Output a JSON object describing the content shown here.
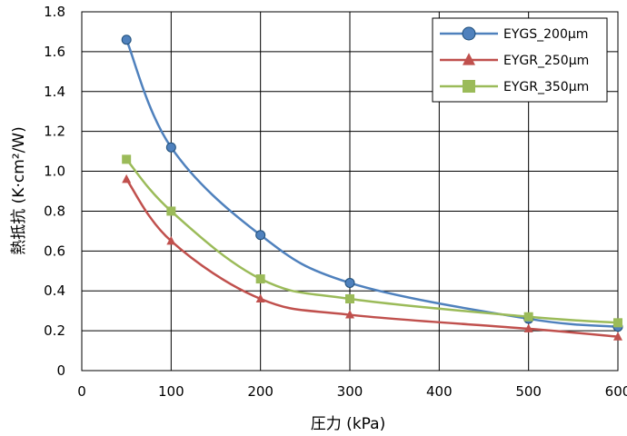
{
  "chart_data": {
    "type": "line",
    "title": "",
    "xlabel": "圧力 (kPa)",
    "ylabel": "熱抵抗 (K·cm²/W)",
    "xlim": [
      0,
      600
    ],
    "ylim": [
      0,
      1.8
    ],
    "x_ticks": [
      0,
      100,
      200,
      300,
      400,
      500,
      600
    ],
    "y_ticks": [
      0,
      0.2,
      0.4,
      0.6,
      0.8,
      1.0,
      1.2,
      1.4,
      1.6,
      1.8
    ],
    "x_tick_labels": [
      "0",
      "100",
      "200",
      "300",
      "400",
      "500",
      "600"
    ],
    "y_tick_labels": [
      "0",
      "0.2",
      "0.4",
      "0.6",
      "0.8",
      "1.0",
      "1.2",
      "1.4",
      "1.6",
      "1.8"
    ],
    "grid": true,
    "legend_position": "top-right",
    "series": [
      {
        "name": "EYGS_200μm",
        "color": "#4F81BD",
        "marker": "circle",
        "x": [
          50,
          100,
          200,
          300,
          500,
          600
        ],
        "y": [
          1.66,
          1.12,
          0.68,
          0.44,
          0.26,
          0.22
        ]
      },
      {
        "name": "EYGR_250μm",
        "color": "#C0504D",
        "marker": "triangle",
        "x": [
          50,
          100,
          200,
          300,
          500,
          600
        ],
        "y": [
          0.96,
          0.65,
          0.36,
          0.28,
          0.21,
          0.17
        ]
      },
      {
        "name": "EYGR_350μm",
        "color": "#9BBB59",
        "marker": "square",
        "x": [
          50,
          100,
          200,
          300,
          500,
          600
        ],
        "y": [
          1.06,
          0.8,
          0.46,
          0.36,
          0.27,
          0.24
        ]
      }
    ]
  }
}
